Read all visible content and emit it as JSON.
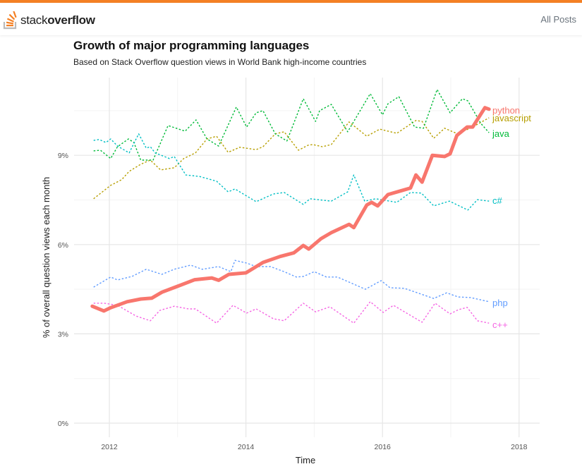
{
  "header": {
    "brand_light": "stack",
    "brand_bold": "overflow",
    "nav_link": "All Posts",
    "accent_color": "#F48024"
  },
  "chart_data": {
    "type": "line",
    "title": "Growth of major programming languages",
    "subtitle": "Based on Stack Overflow question views in World Bank high-income countries",
    "xlabel": "Time",
    "ylabel": "% of overall question views each month",
    "xlim": [
      2011.5,
      2018.15
    ],
    "ylim": [
      0,
      11.8
    ],
    "x_ticks": [
      "2012",
      "2014",
      "2016",
      "2018"
    ],
    "x_tick_values": [
      2012,
      2014,
      2016,
      2018
    ],
    "y_ticks": [
      "0%",
      "3%",
      "6%",
      "9%"
    ],
    "y_tick_values": [
      0,
      3,
      6,
      9
    ],
    "grid": true,
    "legend": "direct labels at line ends (right)",
    "series": [
      {
        "name": "python",
        "color": "#F8766D",
        "style": "solid-thick",
        "x": [
          2011.75,
          2011.92,
          2012.02,
          2012.26,
          2012.46,
          2012.62,
          2012.77,
          2013.0,
          2013.25,
          2013.5,
          2013.6,
          2013.75,
          2014.0,
          2014.25,
          2014.5,
          2014.7,
          2014.84,
          2014.92,
          2015.1,
          2015.25,
          2015.51,
          2015.58,
          2015.77,
          2015.84,
          2015.93,
          2016.08,
          2016.26,
          2016.41,
          2016.49,
          2016.58,
          2016.73,
          2016.91,
          2016.99,
          2017.09,
          2017.24,
          2017.32,
          2017.5,
          2017.56
        ],
        "y": [
          3.93,
          3.77,
          3.88,
          4.08,
          4.17,
          4.2,
          4.4,
          4.6,
          4.82,
          4.88,
          4.8,
          5.0,
          5.05,
          5.4,
          5.6,
          5.72,
          5.97,
          5.85,
          6.2,
          6.4,
          6.68,
          6.57,
          7.33,
          7.42,
          7.3,
          7.68,
          7.8,
          7.9,
          8.34,
          8.1,
          9.0,
          8.96,
          9.05,
          9.67,
          9.95,
          9.95,
          10.6,
          10.55
        ]
      },
      {
        "name": "javascript",
        "color": "#B79F00",
        "style": "dashed",
        "x": [
          2011.77,
          2012.02,
          2012.18,
          2012.29,
          2012.46,
          2012.6,
          2012.75,
          2012.95,
          2013.09,
          2013.26,
          2013.43,
          2013.57,
          2013.74,
          2013.91,
          2014.15,
          2014.25,
          2014.43,
          2014.56,
          2014.77,
          2014.91,
          2014.98,
          2015.12,
          2015.25,
          2015.51,
          2015.77,
          2015.96,
          2016.21,
          2016.49,
          2016.58,
          2016.75,
          2016.91,
          2017.1,
          2017.32,
          2017.56
        ],
        "y": [
          7.54,
          7.99,
          8.18,
          8.46,
          8.7,
          8.84,
          8.51,
          8.58,
          8.89,
          9.08,
          9.55,
          9.64,
          9.1,
          9.27,
          9.19,
          9.29,
          9.72,
          9.79,
          9.17,
          9.34,
          9.36,
          9.29,
          9.36,
          10.12,
          9.64,
          9.88,
          9.74,
          10.17,
          10.14,
          9.57,
          9.91,
          9.72,
          9.95,
          10.26
        ]
      },
      {
        "name": "java",
        "color": "#00BA38",
        "style": "dashed",
        "x": [
          2011.77,
          2011.87,
          2012.02,
          2012.12,
          2012.28,
          2012.36,
          2012.46,
          2012.64,
          2012.86,
          2013.11,
          2013.27,
          2013.43,
          2013.6,
          2013.86,
          2014.01,
          2014.15,
          2014.25,
          2014.43,
          2014.6,
          2014.84,
          2015.02,
          2015.08,
          2015.25,
          2015.49,
          2015.82,
          2016.0,
          2016.08,
          2016.24,
          2016.47,
          2016.6,
          2016.8,
          2016.99,
          2017.17,
          2017.25,
          2017.44,
          2017.56
        ],
        "y": [
          9.15,
          9.17,
          8.89,
          9.29,
          9.55,
          9.43,
          8.84,
          8.84,
          10.0,
          9.81,
          10.19,
          9.55,
          9.31,
          10.62,
          9.95,
          10.43,
          10.5,
          9.72,
          9.48,
          10.9,
          10.14,
          10.5,
          10.71,
          9.79,
          11.07,
          10.36,
          10.73,
          10.97,
          9.95,
          9.91,
          11.21,
          10.43,
          10.9,
          10.83,
          10.07,
          9.76
        ]
      },
      {
        "name": "c#",
        "color": "#00BFC4",
        "style": "dashed",
        "x": [
          2011.77,
          2011.85,
          2011.95,
          2012.02,
          2012.12,
          2012.29,
          2012.43,
          2012.54,
          2012.6,
          2012.67,
          2012.88,
          2012.95,
          2013.12,
          2013.32,
          2013.57,
          2013.74,
          2013.84,
          2014.15,
          2014.4,
          2014.56,
          2014.84,
          2014.94,
          2015.25,
          2015.49,
          2015.58,
          2015.74,
          2015.9,
          2016.21,
          2016.41,
          2016.57,
          2016.75,
          2016.98,
          2017.25,
          2017.39,
          2017.56
        ],
        "y": [
          9.5,
          9.53,
          9.43,
          9.55,
          9.31,
          9.08,
          9.72,
          9.24,
          9.29,
          9.08,
          8.89,
          8.96,
          8.34,
          8.29,
          8.13,
          7.77,
          7.87,
          7.44,
          7.7,
          7.75,
          7.35,
          7.54,
          7.46,
          7.77,
          8.34,
          7.46,
          7.54,
          7.42,
          7.75,
          7.73,
          7.3,
          7.46,
          7.16,
          7.51,
          7.46
        ]
      },
      {
        "name": "php",
        "color": "#619CFF",
        "style": "dashed",
        "x": [
          2011.77,
          2012.02,
          2012.12,
          2012.33,
          2012.54,
          2012.77,
          2012.95,
          2013.19,
          2013.36,
          2013.6,
          2013.78,
          2013.84,
          2014.01,
          2014.15,
          2014.36,
          2014.56,
          2014.74,
          2014.84,
          2015.0,
          2015.18,
          2015.34,
          2015.75,
          2015.98,
          2016.11,
          2016.32,
          2016.75,
          2016.94,
          2017.11,
          2017.29,
          2017.56
        ],
        "y": [
          4.57,
          4.91,
          4.81,
          4.93,
          5.17,
          5.0,
          5.17,
          5.31,
          5.17,
          5.26,
          5.09,
          5.47,
          5.38,
          5.26,
          5.26,
          5.09,
          4.91,
          4.93,
          5.09,
          4.91,
          4.91,
          4.5,
          4.79,
          4.55,
          4.53,
          4.19,
          4.38,
          4.24,
          4.22,
          4.08
        ]
      },
      {
        "name": "c++",
        "color": "#F564E3",
        "style": "dashed",
        "x": [
          2011.77,
          2011.92,
          2012.12,
          2012.39,
          2012.6,
          2012.74,
          2012.95,
          2013.16,
          2013.26,
          2013.57,
          2013.81,
          2014.01,
          2014.15,
          2014.4,
          2014.56,
          2014.84,
          2015.02,
          2015.23,
          2015.58,
          2015.82,
          2016.01,
          2016.16,
          2016.58,
          2016.77,
          2016.99,
          2017.11,
          2017.24,
          2017.39,
          2017.56
        ],
        "y": [
          4.03,
          4.03,
          3.96,
          3.6,
          3.44,
          3.79,
          3.93,
          3.84,
          3.84,
          3.36,
          3.96,
          3.7,
          3.84,
          3.51,
          3.44,
          4.03,
          3.74,
          3.91,
          3.36,
          4.08,
          3.72,
          3.96,
          3.39,
          4.03,
          3.67,
          3.81,
          3.89,
          3.44,
          3.36
        ]
      }
    ]
  }
}
